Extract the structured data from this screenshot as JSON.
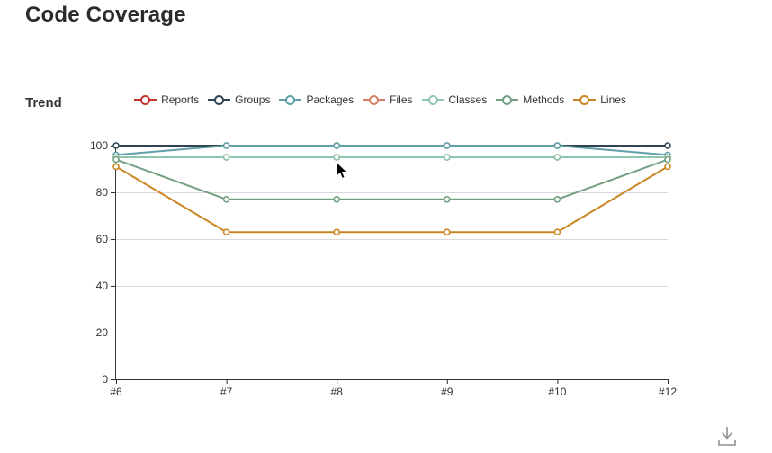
{
  "page": {
    "title": "Code Coverage"
  },
  "section": {
    "title": "Trend"
  },
  "chart_data": {
    "type": "line",
    "title": "Trend",
    "x": [
      "#6",
      "#7",
      "#8",
      "#9",
      "#10",
      "#12"
    ],
    "xlabel": "",
    "ylabel": "",
    "ylim": [
      0,
      100
    ],
    "yticks": [
      0,
      20,
      40,
      60,
      80,
      100
    ],
    "grid": true,
    "legend_position": "top-center",
    "marker": "hollow-circle",
    "series": [
      {
        "name": "Reports",
        "color": "#c23531",
        "values": [
          95,
          95,
          95,
          95,
          95,
          95
        ]
      },
      {
        "name": "Groups",
        "color": "#2f4554",
        "values": [
          100,
          100,
          100,
          100,
          100,
          100
        ]
      },
      {
        "name": "Packages",
        "color": "#61a0a8",
        "values": [
          96,
          100,
          100,
          100,
          100,
          96
        ]
      },
      {
        "name": "Files",
        "color": "#d48265",
        "values": [
          95,
          95,
          95,
          95,
          95,
          95
        ]
      },
      {
        "name": "Classes",
        "color": "#91c7ae",
        "values": [
          95,
          95,
          95,
          95,
          95,
          95
        ]
      },
      {
        "name": "Methods",
        "color": "#749f83",
        "values": [
          94,
          77,
          77,
          77,
          77,
          94
        ]
      },
      {
        "name": "Lines",
        "color": "#ca8622",
        "values": [
          91,
          63,
          63,
          63,
          63,
          91
        ]
      }
    ]
  },
  "toolbox": {
    "download_label": "Save as image"
  },
  "colors": {
    "axis": "#333333",
    "grid_line": "#d9d9d9",
    "tick_text": "#333333",
    "title_text": "#2b2b2b"
  }
}
